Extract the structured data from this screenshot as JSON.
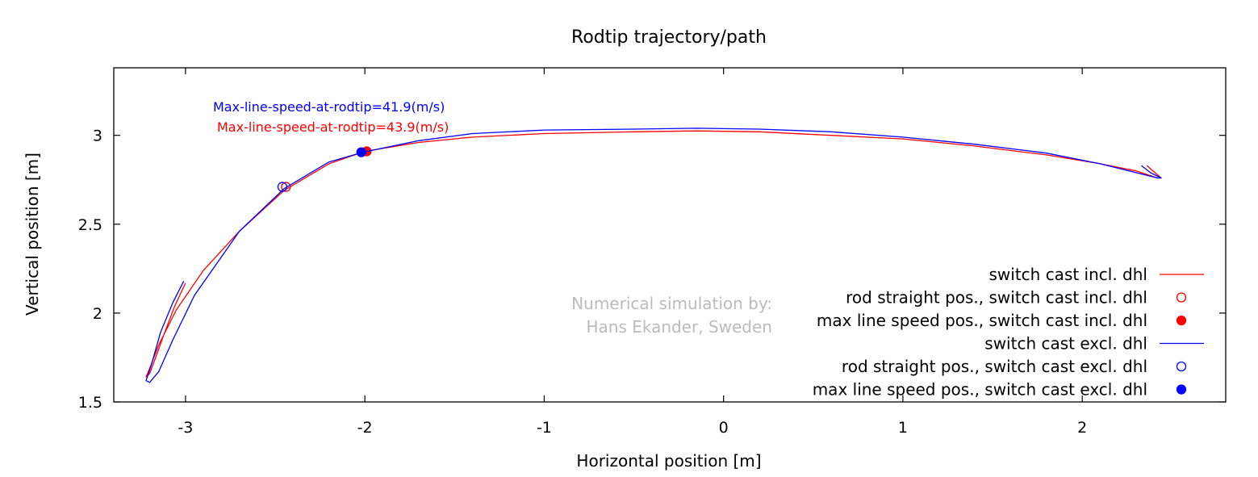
{
  "chart_data": {
    "type": "line",
    "title": "Rodtip trajectory/path",
    "xlabel": "Horizontal position [m]",
    "ylabel": "Vertical position [m]",
    "xlim": [
      -3.4,
      2.8
    ],
    "ylim": [
      1.5,
      3.38
    ],
    "xticks": [
      -3,
      -2,
      -1,
      0,
      1,
      2
    ],
    "yticks": [
      1.5,
      2,
      2.5,
      3
    ],
    "xtick_labels": [
      "-3",
      "-2",
      "-1",
      "0",
      "1",
      "2"
    ],
    "ytick_labels": [
      "1.5",
      "2",
      "2.5",
      "3"
    ],
    "grid": false,
    "legend_position": "bottom-right",
    "series": [
      {
        "name": "switch cast incl. dhl",
        "color": "#ff0000",
        "style": "line",
        "points": [
          [
            -3.0,
            2.17
          ],
          [
            -3.06,
            2.04
          ],
          [
            -3.12,
            1.88
          ],
          [
            -3.17,
            1.74
          ],
          [
            -3.2,
            1.66
          ],
          [
            -3.22,
            1.64
          ],
          [
            -3.2,
            1.69
          ],
          [
            -3.15,
            1.82
          ],
          [
            -3.05,
            2.02
          ],
          [
            -2.9,
            2.24
          ],
          [
            -2.7,
            2.46
          ],
          [
            -2.45,
            2.69
          ],
          [
            -2.2,
            2.84
          ],
          [
            -2.0,
            2.91
          ],
          [
            -1.7,
            2.96
          ],
          [
            -1.4,
            2.99
          ],
          [
            -1.0,
            3.01
          ],
          [
            -0.5,
            3.02
          ],
          [
            -0.15,
            3.025
          ],
          [
            0.2,
            3.02
          ],
          [
            0.6,
            3.0
          ],
          [
            1.0,
            2.98
          ],
          [
            1.4,
            2.94
          ],
          [
            1.8,
            2.89
          ],
          [
            2.1,
            2.84
          ],
          [
            2.3,
            2.8
          ],
          [
            2.42,
            2.76
          ],
          [
            2.44,
            2.76
          ],
          [
            2.36,
            2.83
          ]
        ]
      },
      {
        "name": "rod straight pos., switch cast incl. dhl",
        "color": "#ff0000",
        "style": "open-circle",
        "points": [
          [
            -2.44,
            2.71
          ]
        ]
      },
      {
        "name": "max line speed pos., switch cast incl. dhl",
        "color": "#ff0000",
        "style": "filled-circle",
        "points": [
          [
            -1.99,
            2.91
          ]
        ]
      },
      {
        "name": "switch cast excl. dhl",
        "color": "#0000ff",
        "style": "line",
        "points": [
          [
            -3.01,
            2.18
          ],
          [
            -3.07,
            2.06
          ],
          [
            -3.14,
            1.89
          ],
          [
            -3.19,
            1.71
          ],
          [
            -3.22,
            1.62
          ],
          [
            -3.2,
            1.61
          ],
          [
            -3.15,
            1.67
          ],
          [
            -3.07,
            1.85
          ],
          [
            -2.95,
            2.1
          ],
          [
            -2.7,
            2.46
          ],
          [
            -2.45,
            2.7
          ],
          [
            -2.2,
            2.85
          ],
          [
            -2.01,
            2.905
          ],
          [
            -1.7,
            2.97
          ],
          [
            -1.4,
            3.01
          ],
          [
            -1.0,
            3.03
          ],
          [
            -0.5,
            3.035
          ],
          [
            -0.15,
            3.04
          ],
          [
            0.2,
            3.035
          ],
          [
            0.6,
            3.02
          ],
          [
            1.0,
            2.99
          ],
          [
            1.4,
            2.95
          ],
          [
            1.8,
            2.9
          ],
          [
            2.1,
            2.84
          ],
          [
            2.3,
            2.79
          ],
          [
            2.42,
            2.76
          ],
          [
            2.44,
            2.76
          ],
          [
            2.38,
            2.79
          ],
          [
            2.33,
            2.83
          ]
        ]
      },
      {
        "name": "rod straight pos., switch cast excl. dhl",
        "color": "#0000ff",
        "style": "open-circle",
        "points": [
          [
            -2.46,
            2.71
          ]
        ]
      },
      {
        "name": "max line speed pos., switch cast excl. dhl",
        "color": "#0000ff",
        "style": "filled-circle",
        "points": [
          [
            -2.02,
            2.905
          ]
        ]
      }
    ],
    "annotations": [
      {
        "text": "Max-line-speed-at-rodtip=41.9(m/s)",
        "color": "#0000ff"
      },
      {
        "text": "Max-line-speed-at-rodtip=43.9(m/s)",
        "color": "#ff0000"
      }
    ],
    "watermark": [
      "Numerical simulation by:",
      "Hans Ekander, Sweden"
    ]
  }
}
